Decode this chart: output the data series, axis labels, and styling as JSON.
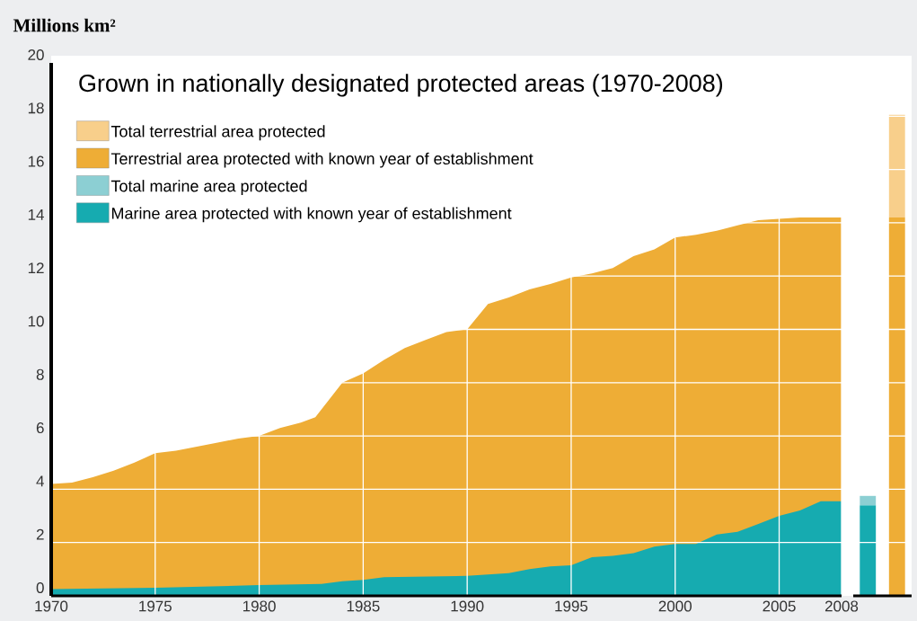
{
  "chart_data": [
    {
      "type": "area",
      "title": "Grown in nationally designated protected areas (1970-2008)",
      "ylabel": "Millions km²",
      "series": [
        {
          "color": "#eead36",
          "x": [
            1970,
            1971,
            1972,
            1973,
            1974,
            1975,
            1976,
            1977,
            1978,
            1979,
            1980,
            1981,
            1982,
            1982.7,
            1984,
            1985,
            1986,
            1987,
            1988,
            1989,
            1990,
            1991,
            1992,
            1993,
            1994,
            1995,
            1996,
            1997,
            1998,
            1999,
            2000,
            2001,
            2002,
            2003,
            2004,
            2005,
            2006,
            2007,
            2008
          ],
          "values": [
            4.2,
            4.25,
            4.45,
            4.7,
            5.0,
            5.35,
            5.45,
            5.6,
            5.75,
            5.9,
            6.0,
            6.3,
            6.5,
            6.7,
            8.0,
            8.35,
            8.85,
            9.3,
            9.6,
            9.9,
            10.0,
            10.95,
            11.2,
            11.5,
            11.7,
            11.95,
            12.1,
            12.3,
            12.75,
            13.0,
            13.45,
            13.55,
            13.7,
            13.9,
            14.1,
            14.15,
            14.2,
            14.2,
            14.2
          ]
        },
        {
          "color": "#16abb0",
          "x": [
            1970,
            1975,
            1980,
            1983,
            1984,
            1985,
            1986,
            1990,
            1991,
            1992,
            1993,
            1994,
            1995,
            1996,
            1997,
            1998,
            1999,
            2000,
            2001,
            2002,
            2003,
            2004,
            2005,
            2006,
            2007,
            2008
          ],
          "values": [
            0.25,
            0.3,
            0.4,
            0.45,
            0.55,
            0.6,
            0.7,
            0.75,
            0.8,
            0.85,
            1.0,
            1.1,
            1.15,
            1.45,
            1.5,
            1.6,
            1.85,
            1.95,
            1.95,
            2.3,
            2.4,
            2.7,
            3.0,
            3.2,
            3.55,
            3.55
          ]
        }
      ],
      "xlim": [
        1970,
        2008
      ],
      "ylim": [
        0,
        20
      ],
      "xticks": [
        1970,
        1975,
        1980,
        1985,
        1990,
        1995,
        2000,
        2005,
        2008
      ],
      "yticks": [
        0,
        2,
        4,
        6,
        8,
        10,
        12,
        14,
        16,
        18,
        20
      ],
      "grid": true
    },
    {
      "type": "bar",
      "stacked": true,
      "categories": [
        null,
        null
      ],
      "series": [
        {
          "name": "Terrestrial area protected with known year of establishment",
          "color": "#eead36",
          "values": [
            null,
            14.2
          ]
        },
        {
          "name": "Total terrestrial area protected",
          "color": "#f8cf8b",
          "values": [
            null,
            3.85
          ]
        },
        {
          "name": "Marine area protected with known year of establishment",
          "color": "#16abb0",
          "values": [
            3.4,
            null
          ]
        },
        {
          "name": "Total marine area protected",
          "color": "#8ccfd3",
          "values": [
            0.35,
            null
          ]
        }
      ],
      "ylim": [
        0,
        20
      ],
      "yticks": [
        0,
        2,
        4,
        6,
        8,
        10,
        12,
        14,
        16,
        18,
        20
      ],
      "grid": "y",
      "tick_labels": false,
      "legend": "top left"
    }
  ]
}
